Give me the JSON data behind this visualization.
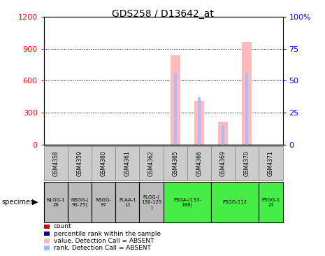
{
  "title": "GDS258 / D13642_at",
  "samples": [
    "GSM4358",
    "GSM4359",
    "GSM4360",
    "GSM4361",
    "GSM4362",
    "GSM4365",
    "GSM4366",
    "GSM4369",
    "GSM4370",
    "GSM4371"
  ],
  "specimen_groups": [
    {
      "label": "NLGG-1\n26",
      "cols": [
        0
      ],
      "color": "#bbbbbb"
    },
    {
      "label": "NSGG-(\n93-75)",
      "cols": [
        1
      ],
      "color": "#bbbbbb"
    },
    {
      "label": "NSGG-\n97",
      "cols": [
        2
      ],
      "color": "#bbbbbb"
    },
    {
      "label": "PLAA-1\n11",
      "cols": [
        3
      ],
      "color": "#bbbbbb"
    },
    {
      "label": "PLGG-(\n136-129\n)",
      "cols": [
        4
      ],
      "color": "#bbbbbb"
    },
    {
      "label": "PSGA-(133-\n188)",
      "cols": [
        5,
        6
      ],
      "color": "#44ee44"
    },
    {
      "label": "PSGG-112",
      "cols": [
        7,
        8
      ],
      "color": "#44ee44"
    },
    {
      "label": "PSGG-1\n21",
      "cols": [
        9
      ],
      "color": "#44ee44"
    }
  ],
  "values_absent": [
    0,
    0,
    0,
    0,
    0,
    840,
    410,
    215,
    960,
    0
  ],
  "ranks_absent": [
    0,
    0,
    0,
    0,
    0,
    56,
    37,
    15,
    56,
    0
  ],
  "ylim_left": [
    0,
    1200
  ],
  "ylim_right": [
    0,
    100
  ],
  "yticks_left": [
    0,
    300,
    600,
    900,
    1200
  ],
  "yticks_right": [
    0,
    25,
    50,
    75,
    100
  ],
  "color_absent_bar": "#ffbbbb",
  "color_absent_rank": "#aabbff",
  "color_count": "#cc0000",
  "color_rank": "#000099",
  "legend_items": [
    {
      "label": "count",
      "color": "#cc0000"
    },
    {
      "label": "percentile rank within the sample",
      "color": "#000099"
    },
    {
      "label": "value, Detection Call = ABSENT",
      "color": "#ffbbbb"
    },
    {
      "label": "rank, Detection Call = ABSENT",
      "color": "#aabbff"
    }
  ],
  "sample_row_color": "#cccccc",
  "grid_lines": [
    300,
    600,
    900
  ]
}
